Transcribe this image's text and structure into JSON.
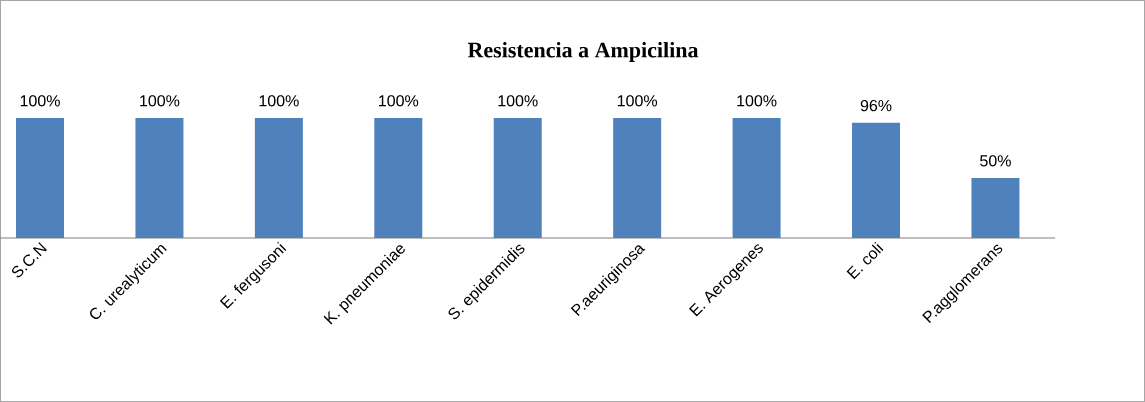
{
  "chart_data": {
    "type": "bar",
    "title": "Resistencia a Ampicilina",
    "categories": [
      "S.C.N",
      "C. urealyticum",
      "E. fergusoni",
      "K. pneumoniae",
      "S. epidermidis",
      "P.aeuriginosa",
      "E. Aerogenes",
      "E. coli",
      "P.agglomerans"
    ],
    "values": [
      100,
      100,
      100,
      100,
      100,
      100,
      100,
      96,
      50
    ],
    "value_labels": [
      "100%",
      "100%",
      "100%",
      "100%",
      "100%",
      "100%",
      "100%",
      "96%",
      "50%"
    ],
    "color": "#4f81bd"
  }
}
